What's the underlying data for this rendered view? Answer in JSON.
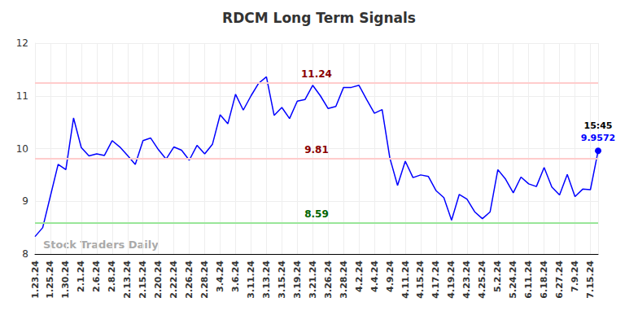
{
  "chart_data": {
    "type": "line",
    "title": "RDCM Long Term Signals",
    "watermark": "Stock Traders Daily",
    "categories": [
      "1.23.24",
      null,
      "1.25.24",
      null,
      "1.30.24",
      null,
      "2.1.24",
      null,
      "2.6.24",
      null,
      "2.8.24",
      null,
      "2.13.24",
      null,
      "2.15.24",
      null,
      "2.20.24",
      null,
      "2.22.24",
      null,
      "2.26.24",
      null,
      "2.28.24",
      null,
      "3.4.24",
      null,
      "3.6.24",
      null,
      "3.11.24",
      null,
      "3.13.24",
      null,
      "3.15.24",
      null,
      "3.19.24",
      null,
      "3.21.24",
      null,
      "3.26.24",
      null,
      "3.28.24",
      null,
      "4.2.24",
      null,
      "4.4.24",
      null,
      "4.9.24",
      null,
      "4.11.24",
      null,
      "4.15.24",
      null,
      "4.17.24",
      null,
      "4.19.24",
      null,
      "4.23.24",
      null,
      "4.25.24",
      null,
      "5.2.24",
      null,
      "5.24.24",
      null,
      "6.11.24",
      null,
      "6.18.24",
      null,
      "6.27.24",
      null,
      "7.9.24",
      null,
      "7.15.24",
      null
    ],
    "series": [
      {
        "color": "#0000ff",
        "values": [
          8.33,
          8.5,
          9.1,
          9.7,
          9.6,
          10.58,
          10.02,
          9.86,
          9.9,
          9.87,
          10.15,
          10.03,
          9.87,
          9.7,
          10.15,
          10.2,
          9.98,
          9.8,
          10.03,
          9.97,
          9.78,
          10.06,
          9.9,
          10.08,
          10.64,
          10.47,
          11.03,
          10.73,
          11.0,
          11.24,
          11.36,
          10.63,
          10.78,
          10.57,
          10.9,
          10.93,
          11.2,
          11.0,
          10.76,
          10.8,
          11.16,
          11.16,
          11.2,
          10.93,
          10.67,
          10.74,
          9.82,
          9.3,
          9.76,
          9.45,
          9.5,
          9.47,
          9.2,
          9.07,
          8.64,
          9.13,
          9.04,
          8.8,
          8.67,
          8.8,
          9.6,
          9.42,
          9.16,
          9.46,
          9.33,
          9.28,
          9.64,
          9.27,
          9.12,
          9.51,
          9.09,
          9.23,
          9.22,
          9.9572
        ]
      }
    ],
    "annotations": [
      {
        "value": 11.24,
        "color": "#ffcccc",
        "label_color": "#8b0000"
      },
      {
        "value": 9.81,
        "color": "#ffcccc",
        "label_color": "#8b0000"
      },
      {
        "value": 8.59,
        "color": "#99e699",
        "label_color": "#006400"
      }
    ],
    "last_point": {
      "time": "15:45",
      "value": 9.9572,
      "color": "#0000ff"
    },
    "ylim": [
      8,
      12
    ],
    "yticks": [
      8,
      9,
      10,
      11,
      12
    ],
    "grid": true
  }
}
